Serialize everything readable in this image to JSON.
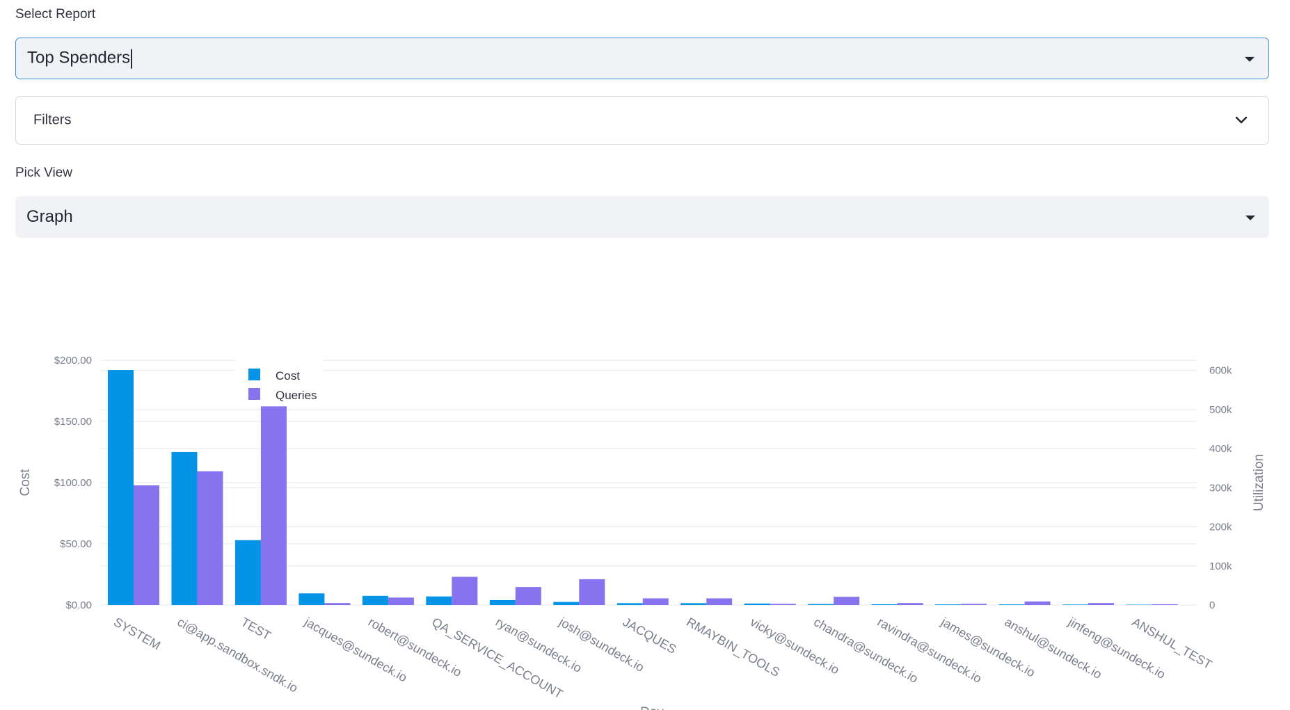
{
  "select_report": {
    "label": "Select Report",
    "value": "Top Spenders"
  },
  "filters": {
    "title": "Filters"
  },
  "pick_view": {
    "label": "Pick View",
    "value": "Graph"
  },
  "colors": {
    "cost": "#0593e6",
    "queries": "#8873ef",
    "grid": "#e6e8ec",
    "axis_text": "#7a7e8c"
  },
  "chart_data": {
    "type": "bar",
    "xlabel": "Day",
    "ylabel": "Cost",
    "y2label": "Utilization",
    "ylim": [
      0,
      200
    ],
    "y2lim": [
      0,
      626000
    ],
    "yticks": [
      "$0.00",
      "$50.00",
      "$100.00",
      "$150.00",
      "$200.00"
    ],
    "y2ticks": [
      "0",
      "100k",
      "200k",
      "300k",
      "400k",
      "500k",
      "600k"
    ],
    "legend_position": "top-left",
    "grid": true,
    "categories": [
      "SYSTEM",
      "ci@app.sandbox.sndk.io",
      "TEST",
      "jacques@sundeck.io",
      "robert@sundeck.io",
      "QA_SERVICE_ACCOUNT",
      "ryan@sundeck.io",
      "josh@sundeck.io",
      "JACQUES",
      "RMAYBIN_TOOLS",
      "vicky@sundeck.io",
      "chandra@sundeck.io",
      "ravindra@sundeck.io",
      "james@sundeck.io",
      "anshul@sundeck.io",
      "jinfeng@sundeck.io",
      "ANSHUL_TEST"
    ],
    "series": [
      {
        "name": "Cost",
        "axis": "left",
        "values": [
          192,
          125,
          53,
          9.5,
          7.5,
          7,
          4,
          2.5,
          1.5,
          1.5,
          1.2,
          0.8,
          0.6,
          0.5,
          0.5,
          0.4,
          0.3
        ]
      },
      {
        "name": "Queries",
        "axis": "right",
        "values": [
          306000,
          342000,
          508000,
          5000,
          19000,
          72000,
          46000,
          66000,
          17000,
          17000,
          3000,
          21000,
          5000,
          3000,
          9000,
          5000,
          2000
        ]
      }
    ]
  }
}
